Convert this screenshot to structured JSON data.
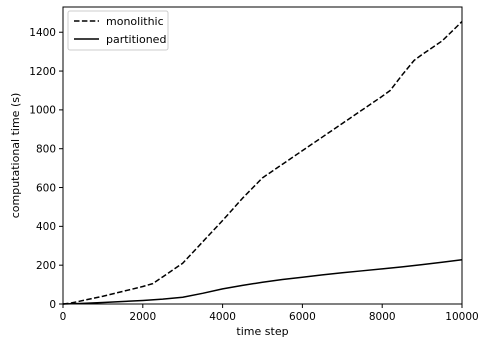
{
  "chart_data": {
    "type": "line",
    "xlabel": "time step",
    "ylabel": "computational time (s)",
    "xlim": [
      0,
      10000
    ],
    "ylim": [
      0,
      1530
    ],
    "xticks": [
      0,
      2000,
      4000,
      6000,
      8000,
      10000
    ],
    "yticks": [
      0,
      200,
      400,
      600,
      800,
      1000,
      1200,
      1400
    ],
    "xtick_labels": [
      "0",
      "2000",
      "4000",
      "6000",
      "8000",
      "10000"
    ],
    "ytick_labels": [
      "0",
      "200",
      "400",
      "600",
      "800",
      "1000",
      "1200",
      "1400"
    ],
    "grid": false,
    "legend_position": "top-left",
    "series": [
      {
        "name": "monolithic",
        "line_style": "dashed",
        "color": "#000000",
        "x": [
          0,
          200,
          500,
          1000,
          1500,
          2000,
          2250,
          2500,
          3000,
          3500,
          4000,
          4500,
          5000,
          5500,
          6000,
          6500,
          7000,
          7500,
          8000,
          8200,
          8500,
          8800,
          9000,
          9500,
          10000
        ],
        "y": [
          0,
          5,
          18,
          40,
          65,
          90,
          105,
          140,
          210,
          320,
          430,
          545,
          650,
          720,
          790,
          860,
          930,
          1000,
          1070,
          1100,
          1180,
          1255,
          1285,
          1355,
          1455
        ]
      },
      {
        "name": "partitioned",
        "line_style": "solid",
        "color": "#000000",
        "x": [
          0,
          500,
          1000,
          1500,
          2000,
          2500,
          3000,
          3500,
          4000,
          4500,
          5000,
          5500,
          6000,
          6500,
          7000,
          7500,
          8000,
          8500,
          9000,
          9500,
          10000
        ],
        "y": [
          0,
          3,
          8,
          13,
          18,
          25,
          35,
          55,
          78,
          96,
          112,
          126,
          138,
          150,
          161,
          171,
          181,
          191,
          203,
          215,
          228
        ]
      }
    ]
  }
}
